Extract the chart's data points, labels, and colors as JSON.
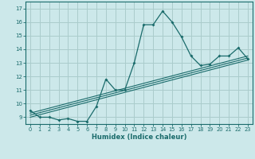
{
  "title": "",
  "xlabel": "Humidex (Indice chaleur)",
  "ylabel": "",
  "bg_color": "#cce8ea",
  "grid_color": "#aacccc",
  "line_color": "#1a6b6b",
  "xlim": [
    -0.5,
    23.5
  ],
  "ylim": [
    8.5,
    17.5
  ],
  "xticks": [
    0,
    1,
    2,
    3,
    4,
    5,
    6,
    7,
    8,
    9,
    10,
    11,
    12,
    13,
    14,
    15,
    16,
    17,
    18,
    19,
    20,
    21,
    22,
    23
  ],
  "yticks": [
    9,
    10,
    11,
    12,
    13,
    14,
    15,
    16,
    17
  ],
  "curve1_x": [
    0,
    1,
    2,
    3,
    4,
    5,
    6,
    7,
    8,
    9,
    10,
    11,
    12,
    13,
    14,
    15,
    16,
    17,
    18,
    19,
    20,
    21,
    22,
    23
  ],
  "curve1_y": [
    9.5,
    9.0,
    9.0,
    8.8,
    8.9,
    8.7,
    8.7,
    9.8,
    11.8,
    11.0,
    11.0,
    13.0,
    15.8,
    15.8,
    16.8,
    16.0,
    14.9,
    13.5,
    12.8,
    12.9,
    13.5,
    13.5,
    14.1,
    13.3
  ],
  "curve2_x": [
    0,
    23
  ],
  "curve2_y": [
    9.0,
    13.2
  ],
  "curve3_x": [
    0,
    23
  ],
  "curve3_y": [
    9.15,
    13.35
  ],
  "curve4_x": [
    0,
    23
  ],
  "curve4_y": [
    9.3,
    13.5
  ]
}
